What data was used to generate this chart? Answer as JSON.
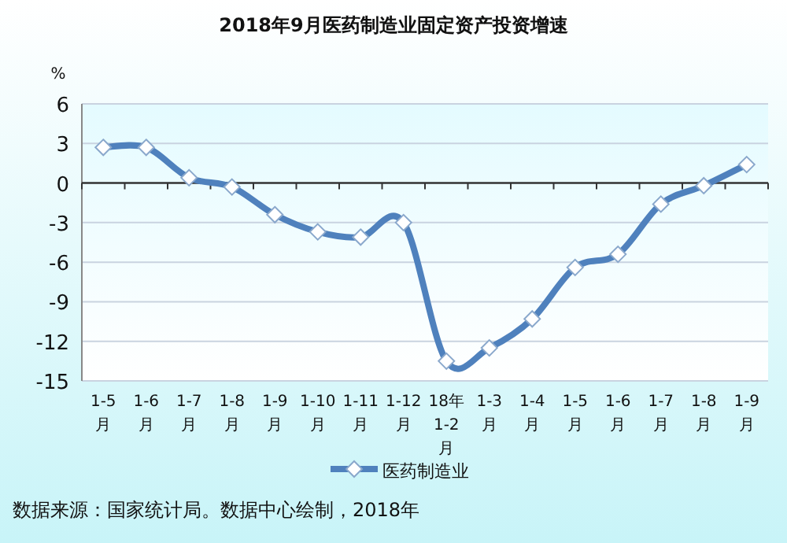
{
  "chart_data": {
    "type": "line",
    "title": "2018年9月医药制造业固定资产投资增速",
    "ylabel": "%",
    "categories": [
      "1-5\n月",
      "1-6\n月",
      "1-7\n月",
      "1-8\n月",
      "1-9\n月",
      "1-10\n月",
      "1-11\n月",
      "1-12\n月",
      "18年\n1-2\n月",
      "1-3\n月",
      "1-4\n月",
      "1-5\n月",
      "1-6\n月",
      "1-7\n月",
      "1-8\n月",
      "1-9\n月"
    ],
    "series": [
      {
        "name": "医药制造业",
        "color": "#4f81bd",
        "values": [
          2.7,
          2.7,
          0.4,
          -0.3,
          -2.4,
          -3.7,
          -4.1,
          -3.0,
          -13.5,
          -12.5,
          -10.3,
          -6.4,
          -5.4,
          -1.6,
          -0.2,
          1.4
        ]
      }
    ],
    "ylim": [
      -15,
      6
    ],
    "yticks": [
      -15,
      -12,
      -9,
      -6,
      -3,
      0,
      3,
      6
    ],
    "grid": "y",
    "legend": "bottom",
    "marker": "diamond",
    "line_style": "solid",
    "annotations": [
      "数据来源：国家统计局。数据中心绘制，2018年"
    ]
  }
}
